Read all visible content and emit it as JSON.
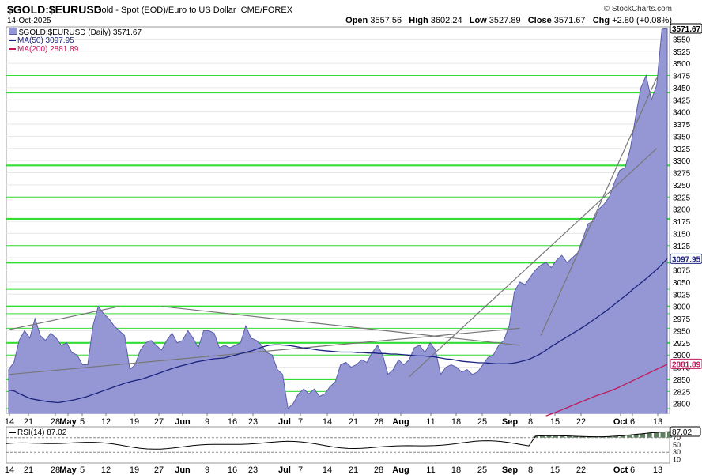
{
  "header": {
    "symbol": "$GOLD:$EURUSD",
    "description": "Gold - Spot (EOD)/Euro to US Dollar",
    "exchange": "CME/FOREX",
    "date": "14-Oct-2025",
    "brand": "© StockCharts.com",
    "open_label": "Open",
    "open": "3557.56",
    "high_label": "High",
    "high": "3602.24",
    "low_label": "Low",
    "low": "3527.89",
    "close_label": "Close",
    "close": "3571.67",
    "chg_label": "Chg",
    "chg": "+2.80 (+0.08%)"
  },
  "legend": {
    "main": "$GOLD:$EURUSD (Daily) 3571.67",
    "ma50": "MA(50) 3097.95",
    "ma200": "MA(200) 2881.89",
    "rsi": "RSI(14) 87.02"
  },
  "colors": {
    "area_fill": "#9497d4",
    "area_line": "#5a5ea8",
    "ma50": "#1a237e",
    "ma200": "#c2185b",
    "support": "#33dd33",
    "trend": "#777777",
    "rsi_fill": "#5f8060"
  },
  "chart_data": {
    "type": "area",
    "x_tick_labels": [
      "14",
      "21",
      "28",
      "May",
      "5",
      "12",
      "19",
      "27",
      "Jun",
      "9",
      "16",
      "23",
      "Jul",
      "7",
      "14",
      "21",
      "28",
      "Aug",
      "11",
      "18",
      "25",
      "Sep",
      "8",
      "15",
      "22",
      "Oct",
      "6",
      "13"
    ],
    "y_ticks": [
      2800,
      2825,
      2850,
      2875,
      2900,
      2925,
      2950,
      2975,
      3000,
      3025,
      3050,
      3075,
      3100,
      3125,
      3150,
      3175,
      3200,
      3225,
      3250,
      3275,
      3300,
      3325,
      3350,
      3375,
      3400,
      3425,
      3450,
      3475,
      3500,
      3525,
      3550
    ],
    "ylim": [
      2780,
      3575
    ],
    "price_series": [
      2870,
      2885,
      2930,
      2950,
      2935,
      2975,
      2940,
      2930,
      2945,
      2935,
      2920,
      2925,
      2905,
      2900,
      2880,
      2880,
      2960,
      3000,
      2985,
      2975,
      2960,
      2950,
      2940,
      2870,
      2880,
      2910,
      2925,
      2930,
      2920,
      2910,
      2930,
      2945,
      2925,
      2930,
      2950,
      2935,
      2915,
      2950,
      2950,
      2945,
      2915,
      2920,
      2915,
      2920,
      2925,
      2960,
      2935,
      2930,
      2920,
      2905,
      2900,
      2870,
      2860,
      2790,
      2800,
      2820,
      2830,
      2820,
      2830,
      2815,
      2820,
      2835,
      2845,
      2880,
      2885,
      2875,
      2880,
      2890,
      2885,
      2905,
      2920,
      2900,
      2860,
      2870,
      2890,
      2880,
      2890,
      2915,
      2920,
      2905,
      2925,
      2910,
      2860,
      2875,
      2880,
      2875,
      2865,
      2870,
      2860,
      2865,
      2880,
      2895,
      2900,
      2920,
      2930,
      2960,
      3030,
      3050,
      3045,
      3060,
      3075,
      3085,
      3090,
      3080,
      3095,
      3105,
      3090,
      3100,
      3110,
      3140,
      3170,
      3175,
      3200,
      3210,
      3225,
      3255,
      3280,
      3285,
      3325,
      3390,
      3450,
      3475,
      3425,
      3455,
      3570,
      3572
    ],
    "ma50": [
      2828,
      2826,
      2820,
      2815,
      2810,
      2808,
      2806,
      2804,
      2803,
      2802,
      2804,
      2806,
      2808,
      2811,
      2814,
      2818,
      2822,
      2826,
      2830,
      2834,
      2838,
      2842,
      2845,
      2848,
      2850,
      2854,
      2858,
      2862,
      2866,
      2870,
      2874,
      2877,
      2880,
      2883,
      2886,
      2888,
      2890,
      2892,
      2893,
      2894,
      2897,
      2900,
      2903,
      2906,
      2909,
      2913,
      2917,
      2920,
      2921,
      2921,
      2920,
      2919,
      2917,
      2915,
      2914,
      2912,
      2910,
      2909,
      2908,
      2907,
      2906,
      2906,
      2906,
      2905,
      2905,
      2904,
      2904,
      2903,
      2903,
      2902,
      2902,
      2901,
      2900,
      2899,
      2898,
      2898,
      2897,
      2896,
      2894,
      2892,
      2891,
      2889,
      2887,
      2886,
      2885,
      2884,
      2884,
      2883,
      2882,
      2882,
      2882,
      2883,
      2885,
      2888,
      2891,
      2896,
      2902,
      2909,
      2917,
      2924,
      2931,
      2938,
      2945,
      2952,
      2959,
      2967,
      2975,
      2983,
      2991,
      3000,
      3009,
      3018,
      3027,
      3037,
      3046,
      3055,
      3065,
      3075,
      3086,
      3098
    ],
    "ma50_x_start": 0,
    "ma200": [
      2775,
      2780,
      2786,
      2792,
      2798,
      2804,
      2810,
      2816,
      2821,
      2826,
      2832,
      2839,
      2846,
      2853,
      2860,
      2867,
      2874,
      2881
    ],
    "ma200_x_start": 102,
    "support_levels": [
      3475,
      3440,
      3290,
      3225,
      3180,
      3125,
      3090,
      3035,
      3000,
      2985,
      2955,
      2925,
      2900,
      2850,
      2825,
      2790
    ],
    "support_strong": [
      3440,
      3290,
      3180,
      3090,
      3000,
      2925,
      2850
    ],
    "trendlines": [
      {
        "from": [
          0,
          2952
        ],
        "to": [
          21,
          3000
        ]
      },
      {
        "from": [
          29,
          3000
        ],
        "to": [
          97,
          2920
        ]
      },
      {
        "from": [
          0,
          2860
        ],
        "to": [
          97,
          2955
        ]
      },
      {
        "from": [
          101,
          2940
        ],
        "to": [
          123,
          3470
        ]
      },
      {
        "from": [
          76,
          2855
        ],
        "to": [
          123,
          3325
        ]
      }
    ],
    "rsi_ticks": [
      70,
      50,
      30,
      10
    ],
    "rsi_value": "87.02",
    "price_label_close": "3571.67",
    "price_label_ma50": "3097.95",
    "price_label_ma200": "2881.89"
  }
}
